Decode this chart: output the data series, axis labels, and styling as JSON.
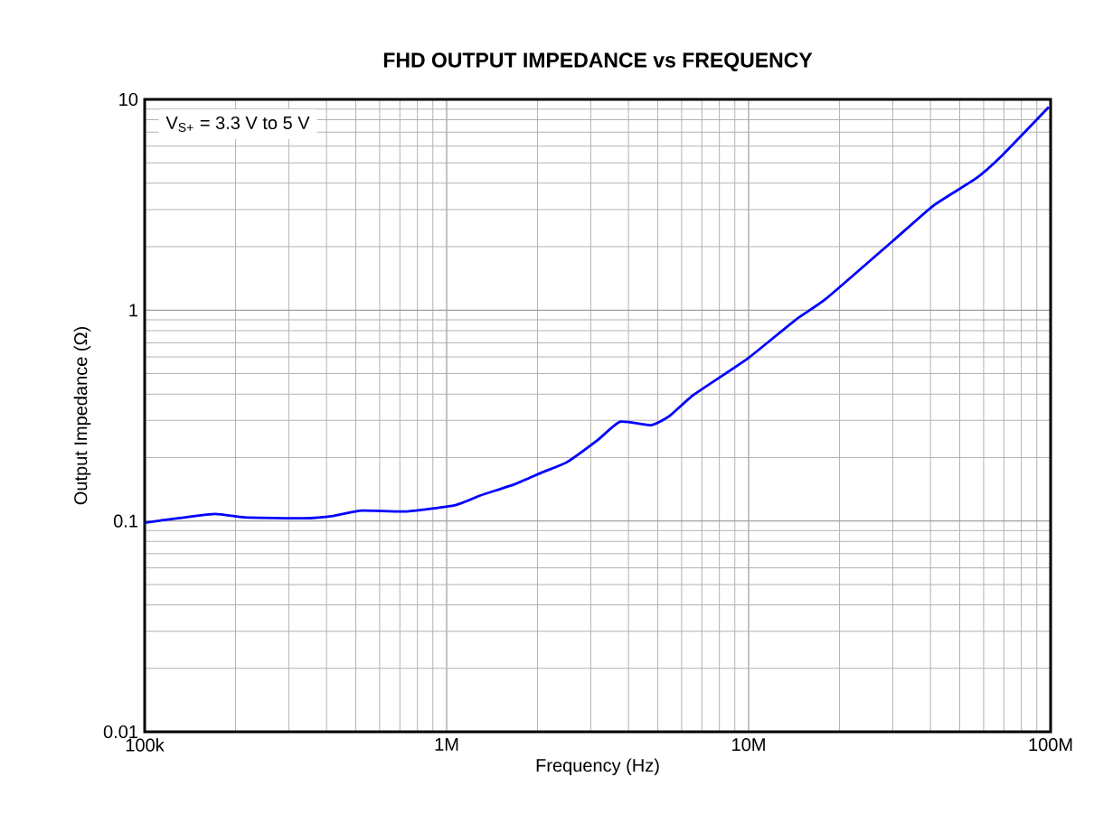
{
  "chart_data": {
    "type": "line",
    "title": "FHD OUTPUT IMPEDANCE vs FREQUENCY",
    "xlabel": "Frequency (Hz)",
    "ylabel": "Output Impedance (Ω)",
    "log": "xy",
    "grid": true,
    "annotations": [
      "V$_{S+}$ = 3.3 V to 5 V"
    ],
    "xlim": [
      100000,
      100000000
    ],
    "ylim": [
      0.01,
      10
    ],
    "xticks": [
      {
        "value": 100000,
        "label": "100k"
      },
      {
        "value": 1000000,
        "label": "1M"
      },
      {
        "value": 10000000,
        "label": "10M"
      },
      {
        "value": 100000000,
        "label": "100M"
      }
    ],
    "yticks": [
      0.01,
      0.1,
      1,
      10
    ],
    "series": [
      {
        "color": "#0000ff",
        "x": [
          100000,
          110000,
          170000,
          214000,
          338000,
          425000,
          523000,
          740000,
          1070000,
          1290000,
          1690000,
          2070000,
          2500000,
          3140000,
          3760000,
          4750000,
          5460000,
          6550000,
          9900000,
          14300000,
          18000000,
          29900000,
          41000000,
          56800000,
          68000000,
          98600000
        ],
        "values": [
          0.098,
          0.1,
          0.108,
          0.104,
          0.103,
          0.106,
          0.112,
          0.111,
          0.119,
          0.132,
          0.15,
          0.17,
          0.19,
          0.24,
          0.296,
          0.285,
          0.314,
          0.395,
          0.588,
          0.9,
          1.13,
          2.12,
          3.14,
          4.23,
          5.3,
          9.2
        ]
      }
    ]
  }
}
